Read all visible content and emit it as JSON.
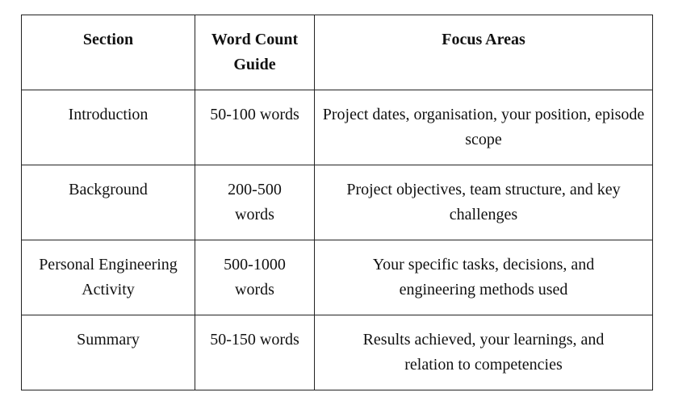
{
  "table": {
    "headers": [
      "Section",
      "Word Count Guide",
      "Focus Areas"
    ],
    "rows": [
      [
        "Introduction",
        "50-100 words",
        "Project dates, organisation, your position, episode scope"
      ],
      [
        "Background",
        "200-500 words",
        "Project objectives, team structure, and key challenges"
      ],
      [
        "Personal Engineering Activity",
        "500-1000 words",
        "Your specific tasks, decisions, and engineering methods used"
      ],
      [
        "Summary",
        "50-150 words",
        "Results achieved, your learnings, and relation to competencies"
      ]
    ]
  }
}
